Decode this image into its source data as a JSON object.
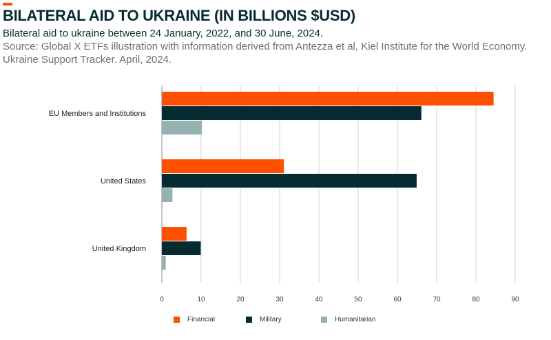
{
  "header": {
    "title": "BILATERAL AID TO UKRAINE (IN BILLIONS $USD)",
    "subtitle": "Bilateral aid to ukraine between 24 January, 2022, and 30 June, 2024.",
    "source": "Source: Global X ETFs illustration with information derived from Antezza et al, Kiel Institute for the World Economy. Ukraine Support Tracker. April, 2024."
  },
  "colors": {
    "accent": "#ff5000",
    "financial": "#ff5000",
    "military": "#062b30",
    "humanitarian": "#94b3b0",
    "grid": "#d0d0d0"
  },
  "chart_data": {
    "type": "bar",
    "orientation": "horizontal",
    "title": "BILATERAL AID TO UKRAINE (IN BILLIONS $USD)",
    "categories": [
      "EU Members and Institutions",
      "United States",
      "United Kingdom"
    ],
    "series": [
      {
        "name": "Financial",
        "color": "#ff5000",
        "values": [
          84.5,
          31.1,
          6.3
        ]
      },
      {
        "name": "Military",
        "color": "#062b30",
        "values": [
          66.1,
          64.9,
          9.9
        ]
      },
      {
        "name": "Humanitarian",
        "color": "#94b3b0",
        "values": [
          10.2,
          2.7,
          1.0
        ]
      }
    ],
    "xlim": [
      0,
      90
    ],
    "xticks": [
      0,
      10,
      20,
      30,
      40,
      50,
      60,
      70,
      80,
      90
    ],
    "xlabel": "",
    "ylabel": "",
    "grid": true,
    "legend_position": "bottom"
  }
}
